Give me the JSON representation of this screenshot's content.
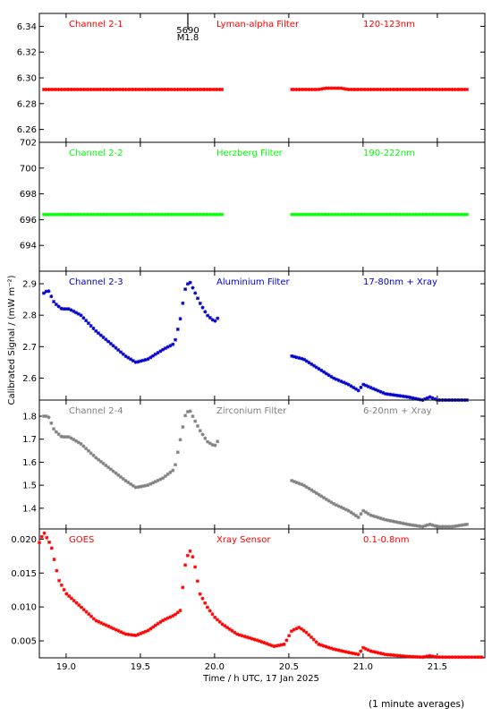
{
  "footnote": "(1 minute averages)",
  "colors": {
    "red": "#ff0000",
    "green": "#00ff00",
    "blue": "#0000cc",
    "grey": "#808080"
  },
  "chart_data": {
    "type": "scatter",
    "xlabel": "Time / h UTC, 17 Jan 2025",
    "ylabel_shared": "Calibrated Signal / (mW m⁻²)",
    "xlim": [
      18.82,
      21.82
    ],
    "xticks": [
      19.0,
      19.5,
      20.0,
      20.5,
      21.0,
      21.5
    ],
    "xtick_labels": [
      "19.0",
      "19.5",
      "20.0",
      "20.5",
      "21.0",
      "21.5"
    ],
    "event_marker": {
      "x": 19.82,
      "label_top": "5690",
      "label_bottom": "M1.8"
    },
    "data_gap": [
      20.06,
      20.5
    ],
    "panels": [
      {
        "channel": "Channel 2-1",
        "filter": "Lyman-alpha Filter",
        "band": "120-123nm",
        "color": "#ff0000",
        "ylim": [
          6.25,
          6.35
        ],
        "yticks": [
          6.26,
          6.28,
          6.3,
          6.32,
          6.34
        ],
        "ytick_labels": [
          "6.26",
          "6.28",
          "6.30",
          "6.32",
          "6.34"
        ],
        "series": [
          {
            "x": [
              18.85,
              20.05
            ],
            "y": [
              6.291,
              6.291
            ]
          },
          {
            "x": [
              20.52,
              20.7,
              20.75,
              20.8,
              20.85,
              20.9,
              21.7
            ],
            "y": [
              6.291,
              6.291,
              6.292,
              6.292,
              6.292,
              6.291,
              6.291
            ]
          }
        ]
      },
      {
        "channel": "Channel 2-2",
        "filter": "Herzberg Filter",
        "band": "190-222nm",
        "color": "#00ff00",
        "ylim": [
          692.0,
          702.0
        ],
        "yticks": [
          694,
          696,
          698,
          700,
          702
        ],
        "ytick_labels": [
          "694",
          "696",
          "698",
          "700",
          "702"
        ],
        "series": [
          {
            "x": [
              18.85,
              20.05
            ],
            "y": [
              696.4,
              696.4
            ]
          },
          {
            "x": [
              20.52,
              21.7
            ],
            "y": [
              696.4,
              696.4
            ]
          }
        ]
      },
      {
        "channel": "Channel 2-3",
        "filter": "Aluminium Filter",
        "band": "17-80nm + Xray",
        "color": "#0000cc",
        "ylim": [
          2.53,
          2.94
        ],
        "yticks": [
          2.6,
          2.7,
          2.8,
          2.9
        ],
        "ytick_labels": [
          "2.6",
          "2.7",
          "2.8",
          "2.9"
        ],
        "series": [
          {
            "x": [
              18.85,
              18.88,
              18.92,
              18.97,
              19.02,
              19.1,
              19.2,
              19.3,
              19.4,
              19.47,
              19.55,
              19.65,
              19.73,
              19.77,
              19.8,
              19.83,
              19.86,
              19.9,
              19.95,
              20.0,
              20.02
            ],
            "y": [
              2.87,
              2.88,
              2.84,
              2.82,
              2.82,
              2.8,
              2.75,
              2.71,
              2.67,
              2.65,
              2.66,
              2.69,
              2.71,
              2.79,
              2.88,
              2.91,
              2.88,
              2.84,
              2.8,
              2.78,
              2.79
            ]
          },
          {
            "x": [
              20.52,
              20.6,
              20.7,
              20.8,
              20.9,
              20.97,
              21.0,
              21.05,
              21.15,
              21.3,
              21.4,
              21.45,
              21.5,
              21.6,
              21.7
            ],
            "y": [
              2.67,
              2.66,
              2.63,
              2.6,
              2.58,
              2.56,
              2.58,
              2.57,
              2.55,
              2.54,
              2.53,
              2.54,
              2.53,
              2.53,
              2.53
            ]
          }
        ]
      },
      {
        "channel": "Channel 2-4",
        "filter": "Zirconium Filter",
        "band": "6-20nm + Xray",
        "color": "#808080",
        "ylim": [
          1.31,
          1.87
        ],
        "yticks": [
          1.4,
          1.5,
          1.6,
          1.7,
          1.8
        ],
        "ytick_labels": [
          "1.4",
          "1.5",
          "1.6",
          "1.7",
          "1.8"
        ],
        "series": [
          {
            "x": [
              18.85,
              18.88,
              18.92,
              18.97,
              19.02,
              19.1,
              19.2,
              19.3,
              19.4,
              19.47,
              19.55,
              19.65,
              19.73,
              19.77,
              19.8,
              19.83,
              19.86,
              19.9,
              19.95,
              20.0,
              20.02
            ],
            "y": [
              1.8,
              1.8,
              1.74,
              1.71,
              1.71,
              1.68,
              1.62,
              1.57,
              1.52,
              1.49,
              1.5,
              1.53,
              1.57,
              1.7,
              1.8,
              1.83,
              1.79,
              1.74,
              1.69,
              1.67,
              1.69
            ]
          },
          {
            "x": [
              20.52,
              20.6,
              20.7,
              20.8,
              20.9,
              20.97,
              21.0,
              21.05,
              21.15,
              21.3,
              21.4,
              21.45,
              21.5,
              21.6,
              21.7
            ],
            "y": [
              1.52,
              1.5,
              1.46,
              1.42,
              1.39,
              1.36,
              1.39,
              1.37,
              1.35,
              1.33,
              1.32,
              1.33,
              1.32,
              1.32,
              1.33
            ]
          }
        ]
      },
      {
        "channel": "GOES",
        "filter": "Xray Sensor",
        "band": "0.1-0.8nm",
        "color": "#ff0000",
        "ylim": [
          0.0025,
          0.0215
        ],
        "yticks": [
          0.005,
          0.01,
          0.015,
          0.02
        ],
        "ytick_labels": [
          "0.005",
          "0.010",
          "0.015",
          "0.020"
        ],
        "series": [
          {
            "x": [
              18.82,
              18.85,
              18.9,
              18.95,
              19.0,
              19.1,
              19.2,
              19.3,
              19.4,
              19.47,
              19.55,
              19.65,
              19.73,
              19.77,
              19.8,
              19.83,
              19.86,
              19.9,
              19.95,
              20.0,
              20.05,
              20.15,
              20.3,
              20.4,
              20.47,
              20.52,
              20.57,
              20.62,
              20.7,
              20.8,
              20.9,
              20.97,
              21.0,
              21.05,
              21.15,
              21.3,
              21.4,
              21.45,
              21.5,
              21.6,
              21.7,
              21.8
            ],
            "y": [
              0.0195,
              0.021,
              0.019,
              0.014,
              0.012,
              0.01,
              0.008,
              0.007,
              0.006,
              0.0058,
              0.0065,
              0.008,
              0.0088,
              0.0095,
              0.016,
              0.0185,
              0.017,
              0.012,
              0.01,
              0.0085,
              0.0075,
              0.006,
              0.005,
              0.0042,
              0.0045,
              0.0065,
              0.007,
              0.0062,
              0.0045,
              0.0038,
              0.0033,
              0.003,
              0.004,
              0.0035,
              0.003,
              0.0027,
              0.0026,
              0.0028,
              0.0026,
              0.0026,
              0.0026,
              0.0026
            ]
          }
        ]
      }
    ]
  }
}
